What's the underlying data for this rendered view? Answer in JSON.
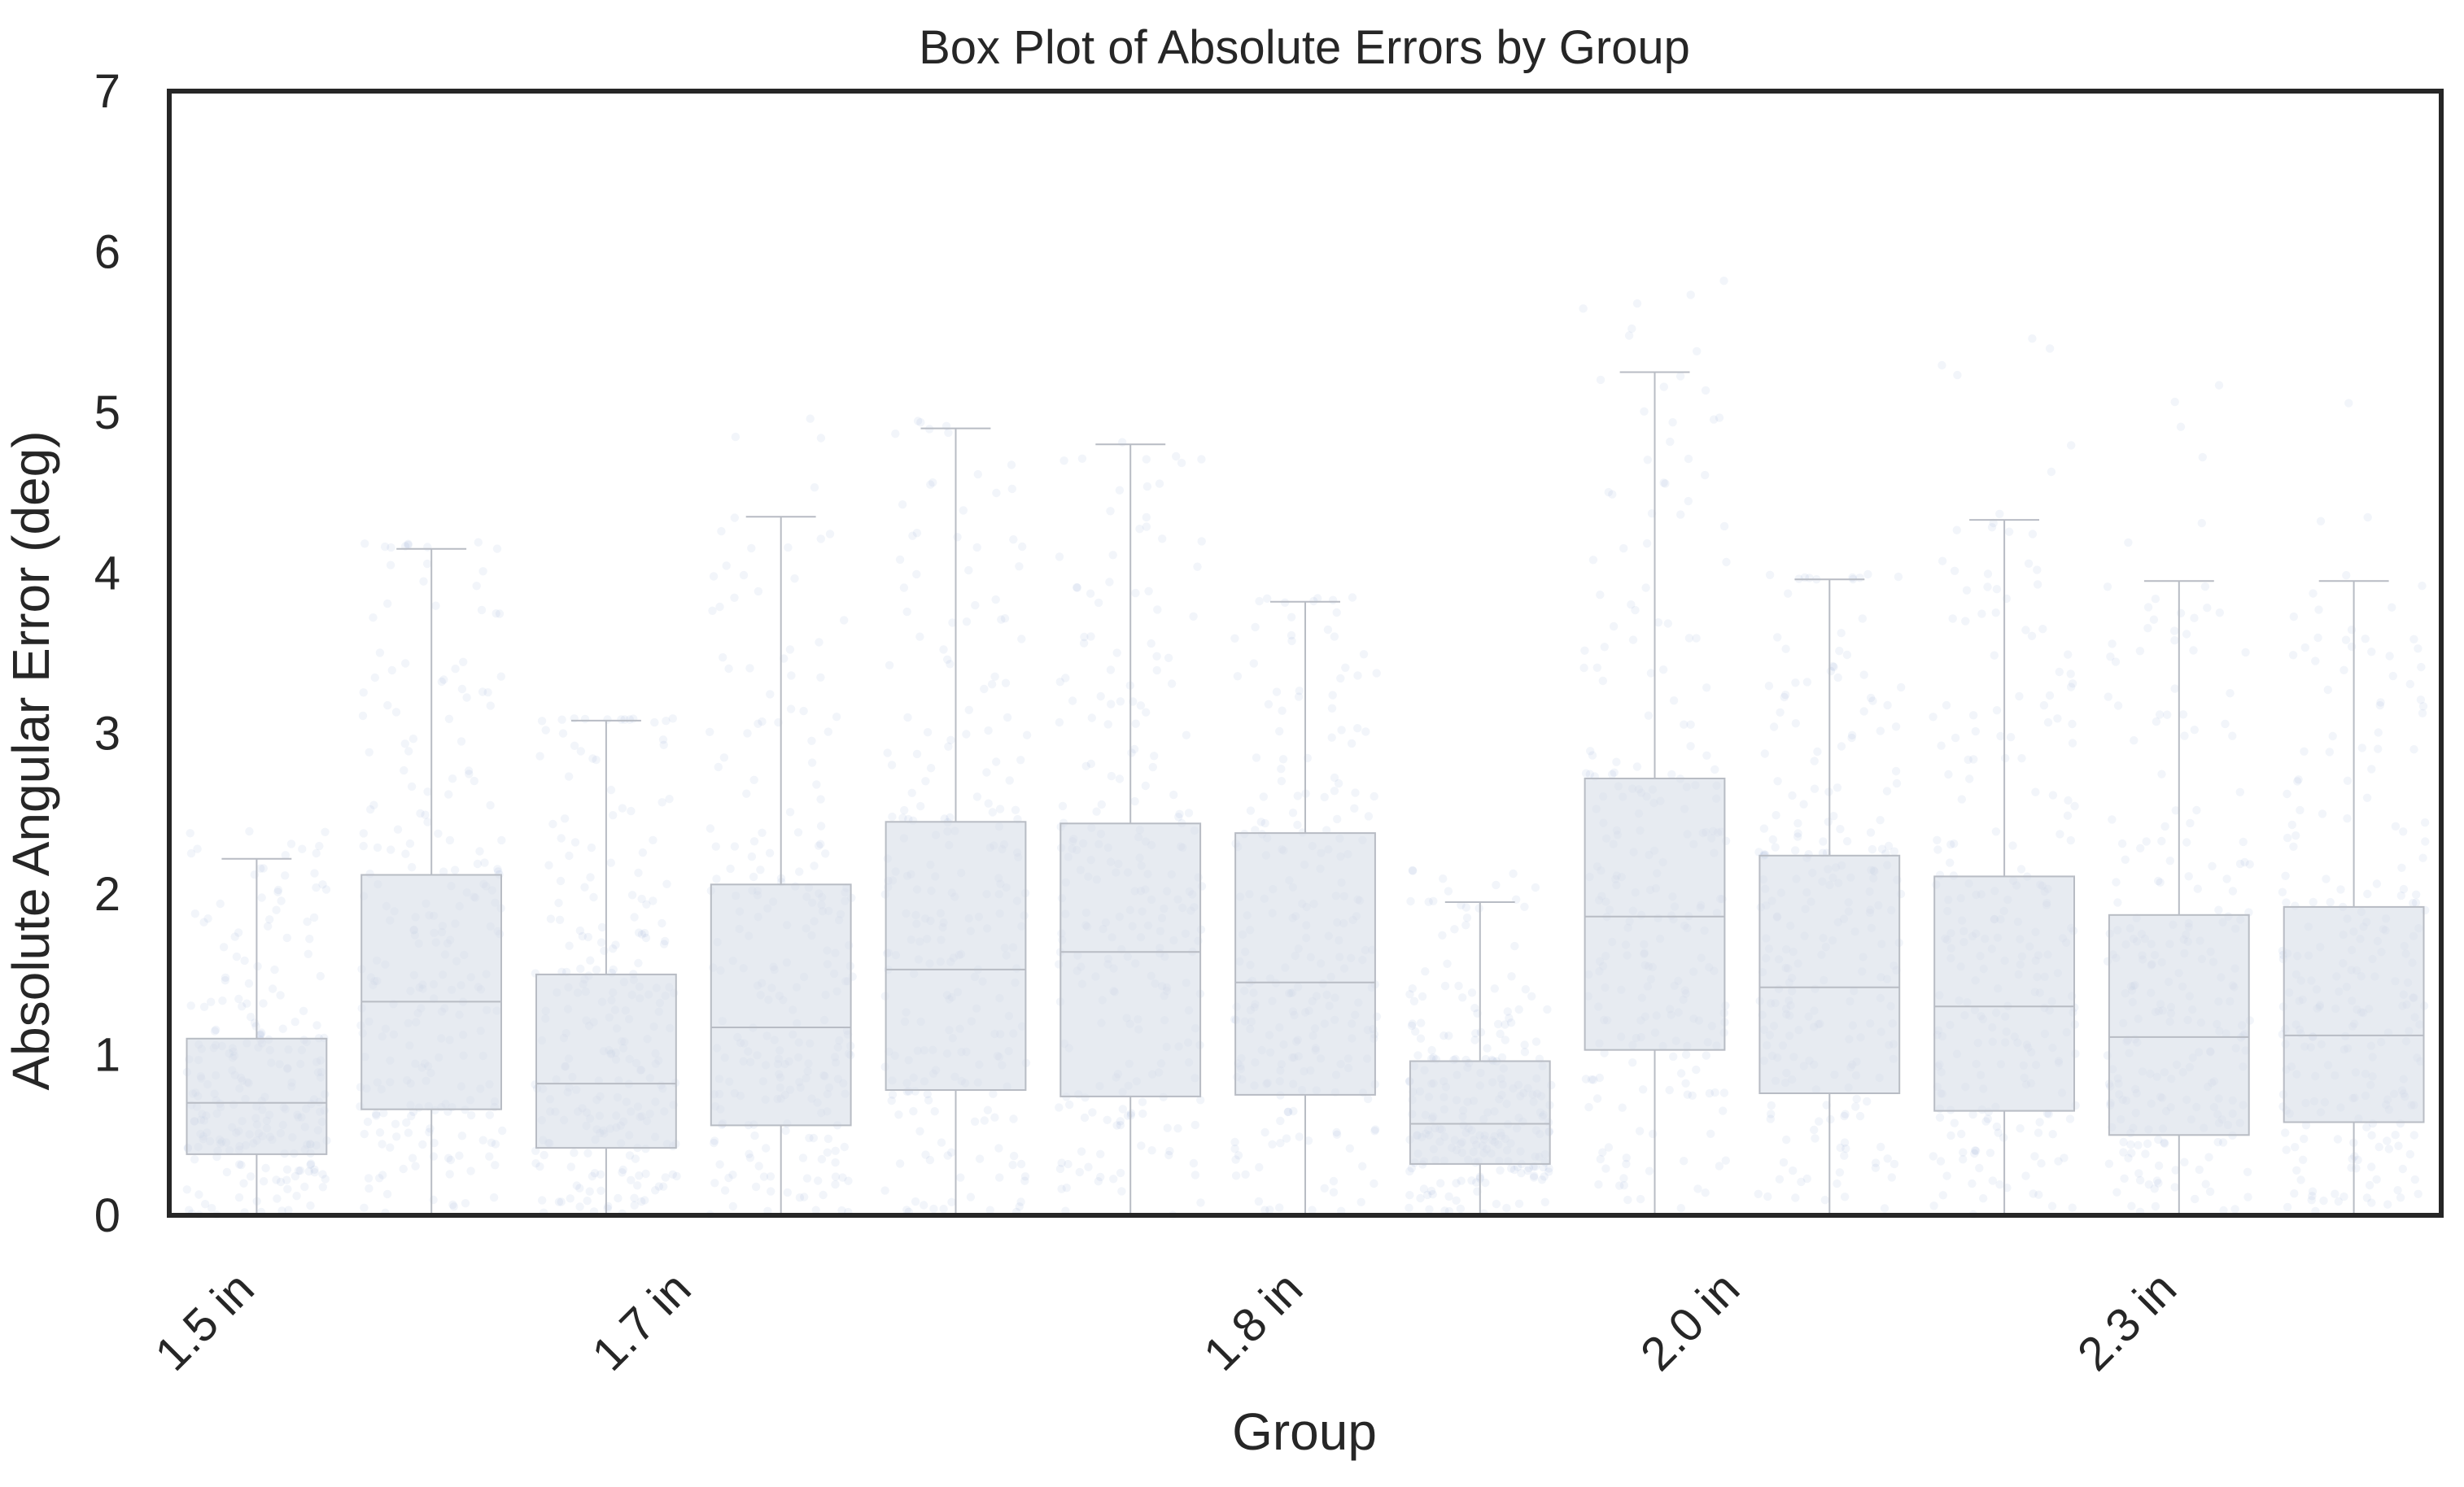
{
  "chart_data": {
    "type": "box",
    "title": "Box Plot of Absolute Errors by Group",
    "xlabel": "Group",
    "ylabel": "Absolute Angular Error (deg)",
    "ylim": [
      0,
      7
    ],
    "y_ticks": [
      0,
      1,
      2,
      3,
      4,
      5,
      6,
      7
    ],
    "x_tick_labels_visible": [
      "1.5 in",
      "1.7 in",
      "1.8 in",
      "2.0 in",
      "2.3 in"
    ],
    "x_tick_label_positions": [
      0,
      2.5,
      6,
      8.5,
      11
    ],
    "box_color": "#d9dee8",
    "point_color": "#5b7fbf",
    "box_edge_color": "#b8bcc4",
    "boxes": [
      {
        "q1": 0.38,
        "median": 0.7,
        "q3": 1.1,
        "whisker_low": 0.0,
        "whisker_high": 2.22,
        "point_max": 2.4
      },
      {
        "q1": 0.66,
        "median": 1.33,
        "q3": 2.12,
        "whisker_low": 0.0,
        "whisker_high": 4.15,
        "point_max": 4.2
      },
      {
        "q1": 0.42,
        "median": 0.82,
        "q3": 1.5,
        "whisker_low": 0.0,
        "whisker_high": 3.08,
        "point_max": 3.1
      },
      {
        "q1": 0.56,
        "median": 1.17,
        "q3": 2.06,
        "whisker_low": 0.0,
        "whisker_high": 4.35,
        "point_max": 5.1
      },
      {
        "q1": 0.78,
        "median": 1.53,
        "q3": 2.45,
        "whisker_low": 0.0,
        "whisker_high": 4.9,
        "point_max": 4.95
      },
      {
        "q1": 0.74,
        "median": 1.64,
        "q3": 2.44,
        "whisker_low": 0.0,
        "whisker_high": 4.8,
        "point_max": 4.85
      },
      {
        "q1": 0.75,
        "median": 1.45,
        "q3": 2.38,
        "whisker_low": 0.0,
        "whisker_high": 3.82,
        "point_max": 3.85
      },
      {
        "q1": 0.32,
        "median": 0.57,
        "q3": 0.96,
        "whisker_low": 0.0,
        "whisker_high": 1.95,
        "point_max": 2.2
      },
      {
        "q1": 1.03,
        "median": 1.86,
        "q3": 2.72,
        "whisker_low": 0.0,
        "whisker_high": 5.25,
        "point_max": 5.9
      },
      {
        "q1": 0.76,
        "median": 1.42,
        "q3": 2.24,
        "whisker_low": 0.0,
        "whisker_high": 3.96,
        "point_max": 4.0
      },
      {
        "q1": 0.65,
        "median": 1.3,
        "q3": 2.11,
        "whisker_low": 0.0,
        "whisker_high": 4.33,
        "point_max": 5.5
      },
      {
        "q1": 0.5,
        "median": 1.11,
        "q3": 1.87,
        "whisker_low": 0.0,
        "whisker_high": 3.95,
        "point_max": 5.8
      },
      {
        "q1": 0.58,
        "median": 1.12,
        "q3": 1.92,
        "whisker_low": 0.0,
        "whisker_high": 3.95,
        "point_max": 5.8
      }
    ]
  }
}
